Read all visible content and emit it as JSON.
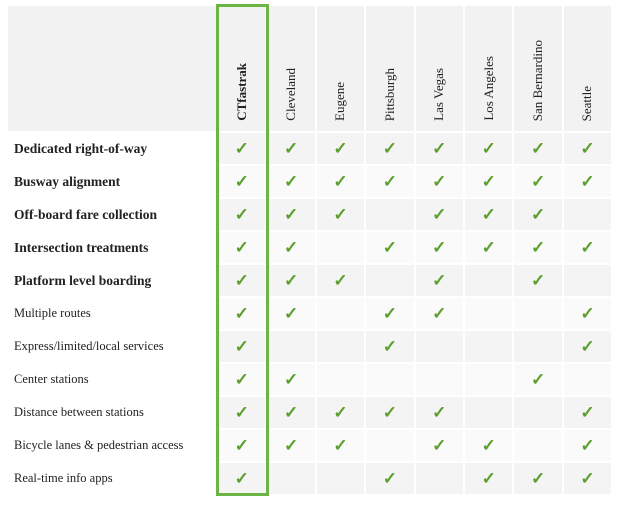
{
  "table": {
    "columns": [
      "CTfastrak",
      "Cleveland",
      "Eugene",
      "Pittsburgh",
      "Las Vegas",
      "Los Angeles",
      "San Bernardino",
      "Seattle"
    ],
    "rows": [
      {
        "label": "Dedicated right-of-way",
        "cells": [
          "✓",
          "✓",
          "✓",
          "✓",
          "✓",
          "✓",
          "✓",
          "✓"
        ]
      },
      {
        "label": "Busway alignment",
        "cells": [
          "✓",
          "✓",
          "✓",
          "✓",
          "✓",
          "✓",
          "✓",
          "✓"
        ]
      },
      {
        "label": "Off-board fare collection",
        "cells": [
          "✓",
          "✓",
          "✓",
          null,
          "✓",
          "✓",
          "✓",
          null
        ]
      },
      {
        "label": "Intersection treatments",
        "cells": [
          "✓",
          "✓",
          null,
          "✓",
          "✓",
          "✓",
          "✓",
          "✓"
        ]
      },
      {
        "label": "Platform level boarding",
        "cells": [
          "✓",
          "✓",
          "✓",
          null,
          "✓",
          null,
          "✓",
          null
        ]
      },
      {
        "label": "Multiple routes",
        "cells": [
          "✓",
          "✓",
          null,
          "✓",
          "✓",
          null,
          null,
          "✓"
        ]
      },
      {
        "label": "Express/limited/local services",
        "cells": [
          "✓",
          null,
          null,
          "✓",
          null,
          null,
          null,
          "✓"
        ]
      },
      {
        "label": "Center stations",
        "cells": [
          "✓",
          "✓",
          null,
          null,
          null,
          null,
          "✓",
          null
        ]
      },
      {
        "label": "Distance between stations",
        "cells": [
          "✓",
          "✓",
          "✓",
          "✓",
          "✓",
          null,
          null,
          "✓"
        ]
      },
      {
        "label": "Bicycle lanes & pedestrian access",
        "cells": [
          "✓",
          "✓",
          "✓",
          null,
          "✓",
          "✓",
          null,
          "✓"
        ]
      },
      {
        "label": "Real-time info apps",
        "cells": [
          "✓",
          null,
          null,
          "✓",
          null,
          "✓",
          "✓",
          "✓"
        ]
      }
    ]
  }
}
